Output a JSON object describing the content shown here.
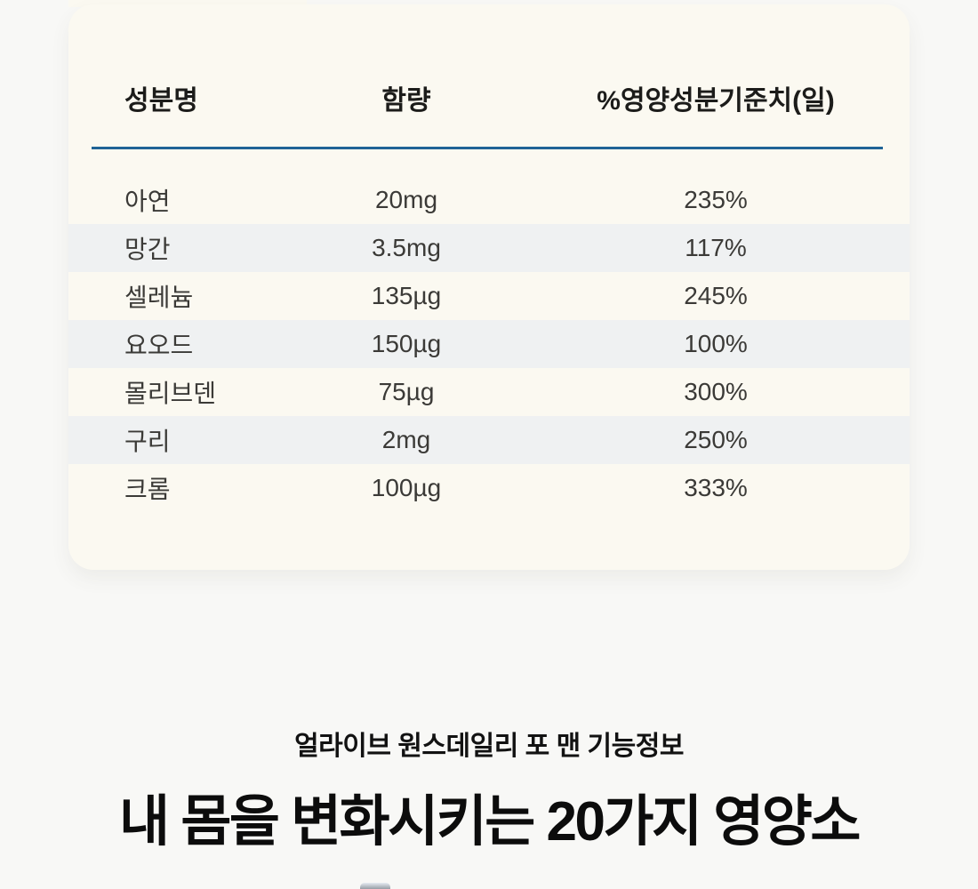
{
  "colors": {
    "page_background": "#f8f8f6",
    "card_background": "#fbf9f1",
    "row_stripe": "#eff1f2",
    "divider_blue": "#1f6396",
    "heading_text": "#1c1c1a",
    "body_text": "#3b3a37"
  },
  "table": {
    "columns": [
      "성분명",
      "함량",
      "%영양성분기준치(일)"
    ],
    "rows": [
      {
        "name": "아연",
        "amount": "20mg",
        "percent": "235%"
      },
      {
        "name": "망간",
        "amount": "3.5mg",
        "percent": "117%"
      },
      {
        "name": "셀레늄",
        "amount": "135µg",
        "percent": "245%"
      },
      {
        "name": "요오드",
        "amount": "150µg",
        "percent": "100%"
      },
      {
        "name": "몰리브덴",
        "amount": "75µg",
        "percent": "300%"
      },
      {
        "name": "구리",
        "amount": "2mg",
        "percent": "250%"
      },
      {
        "name": "크롬",
        "amount": "100µg",
        "percent": "333%"
      }
    ]
  },
  "footer": {
    "subtitle": "얼라이브 원스데일리 포 맨 기능정보",
    "title": "내 몸을 변화시키는 20가지 영양소"
  }
}
